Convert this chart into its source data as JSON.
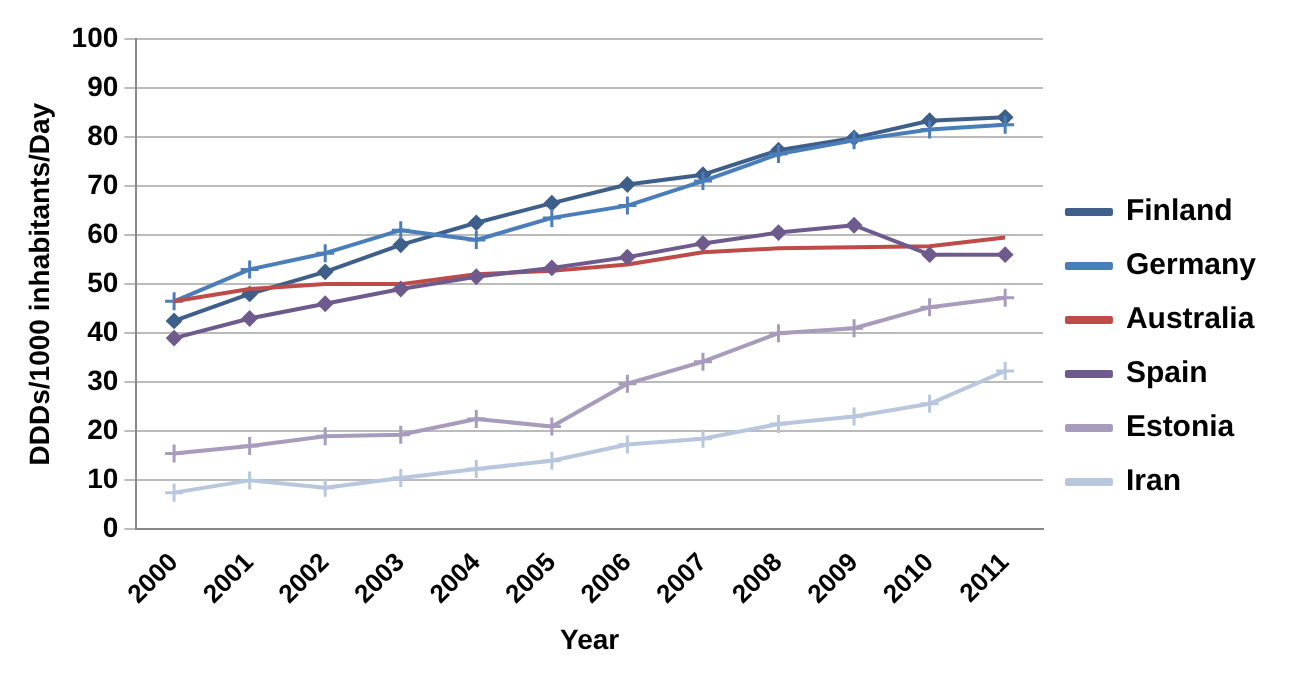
{
  "chart_data": {
    "type": "line",
    "xlabel": "Year",
    "ylabel": "DDDs/1000 inhabitants/Day",
    "categories": [
      "2000",
      "2001",
      "2002",
      "2003",
      "2004",
      "2005",
      "2006",
      "2007",
      "2008",
      "2009",
      "2010",
      "2011"
    ],
    "series": [
      {
        "name": "Finland",
        "color": "#3e5f8a",
        "marker": "diamond",
        "values": [
          42.5,
          48,
          52.5,
          58,
          62.5,
          66.5,
          70.3,
          72.3,
          77.3,
          79.8,
          83.3,
          84
        ]
      },
      {
        "name": "Germany",
        "color": "#4a7ebb",
        "marker": "cross",
        "values": [
          46.5,
          53,
          56.3,
          61,
          59,
          63.5,
          66,
          71,
          76.5,
          79.3,
          81.5,
          82.5
        ]
      },
      {
        "name": "Australia",
        "color": "#be4b48",
        "marker": "none",
        "values": [
          46.5,
          49,
          50,
          50,
          52,
          52.7,
          54,
          56.5,
          57.3,
          57.5,
          57.7,
          59.5
        ]
      },
      {
        "name": "Spain",
        "color": "#6f5a8e",
        "marker": "diamond",
        "values": [
          39,
          43,
          46,
          49,
          51.5,
          53.3,
          55.5,
          58.3,
          60.5,
          62,
          56,
          56
        ]
      },
      {
        "name": "Estonia",
        "color": "#a99bbb",
        "marker": "cross",
        "values": [
          15.5,
          17,
          19,
          19.3,
          22.5,
          21,
          29.7,
          34.2,
          40,
          41,
          45.3,
          47.2
        ]
      },
      {
        "name": "Iran",
        "color": "#b9c7de",
        "marker": "cross",
        "values": [
          7.5,
          10,
          8.5,
          10.5,
          12.3,
          14,
          17.3,
          18.5,
          21.5,
          23,
          25.6,
          32.3
        ]
      }
    ],
    "ylim": [
      0,
      100
    ],
    "yticks": [
      0,
      10,
      20,
      30,
      40,
      50,
      60,
      70,
      80,
      90,
      100
    ],
    "grid": "y",
    "legend": "right",
    "line_style": "solid"
  }
}
